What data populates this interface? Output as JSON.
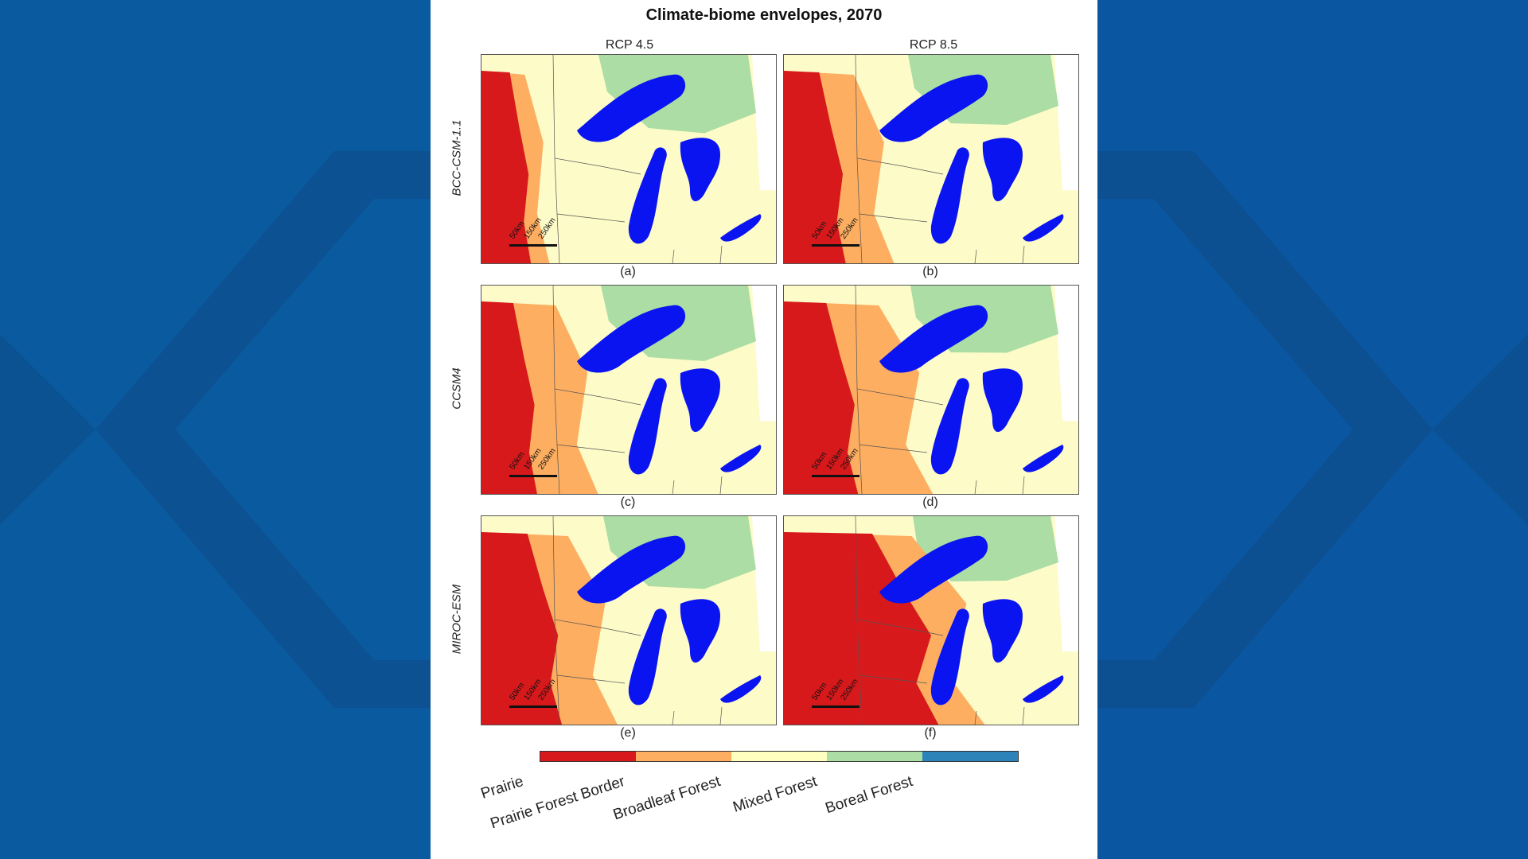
{
  "figure": {
    "title": "Climate-biome envelopes, 2070",
    "columns": [
      "RCP 4.5",
      "RCP 8.5"
    ],
    "rows": [
      "BCC-CSM-1.1",
      "CCSM4",
      "MIROC-ESM"
    ],
    "panels": [
      {
        "label": "(a)",
        "model": "BCC-CSM-1.1",
        "scenario": "RCP 4.5",
        "prairie_extent": 0.16,
        "border_extent": 0.05,
        "mixed_extent": 0.55
      },
      {
        "label": "(b)",
        "model": "BCC-CSM-1.1",
        "scenario": "RCP 8.5",
        "prairie_extent": 0.2,
        "border_extent": 0.14,
        "mixed_extent": 0.4
      },
      {
        "label": "(c)",
        "model": "CCSM4",
        "scenario": "RCP 4.5",
        "prairie_extent": 0.18,
        "border_extent": 0.18,
        "mixed_extent": 0.5
      },
      {
        "label": "(d)",
        "model": "CCSM4",
        "scenario": "RCP 8.5",
        "prairie_extent": 0.24,
        "border_extent": 0.22,
        "mixed_extent": 0.35
      },
      {
        "label": "(e)",
        "model": "MIROC-ESM",
        "scenario": "RCP 4.5",
        "prairie_extent": 0.26,
        "border_extent": 0.16,
        "mixed_extent": 0.45
      },
      {
        "label": "(f)",
        "model": "MIROC-ESM",
        "scenario": "RCP 8.5",
        "prairie_extent": 0.5,
        "border_extent": 0.12,
        "mixed_extent": 0.3
      }
    ],
    "scalebar": [
      "50km",
      "150km",
      "250km"
    ]
  },
  "legend": {
    "items": [
      {
        "label": "Prairie",
        "color": "#d7191c"
      },
      {
        "label": "Prairie Forest Border",
        "color": "#fdae61"
      },
      {
        "label": "Broadleaf Forest",
        "color": "#ffffbf"
      },
      {
        "label": "Mixed Forest",
        "color": "#abdda4"
      },
      {
        "label": "Boreal Forest",
        "color": "#2b83ba"
      }
    ]
  },
  "colors": {
    "water": "#0a14f0",
    "prairie": "#d7191c",
    "border": "#fdae61",
    "broadleaf": "#fdfbc8",
    "mixed": "#abdda4",
    "boreal": "#2b83ba",
    "background_blue": "#0b559a"
  }
}
